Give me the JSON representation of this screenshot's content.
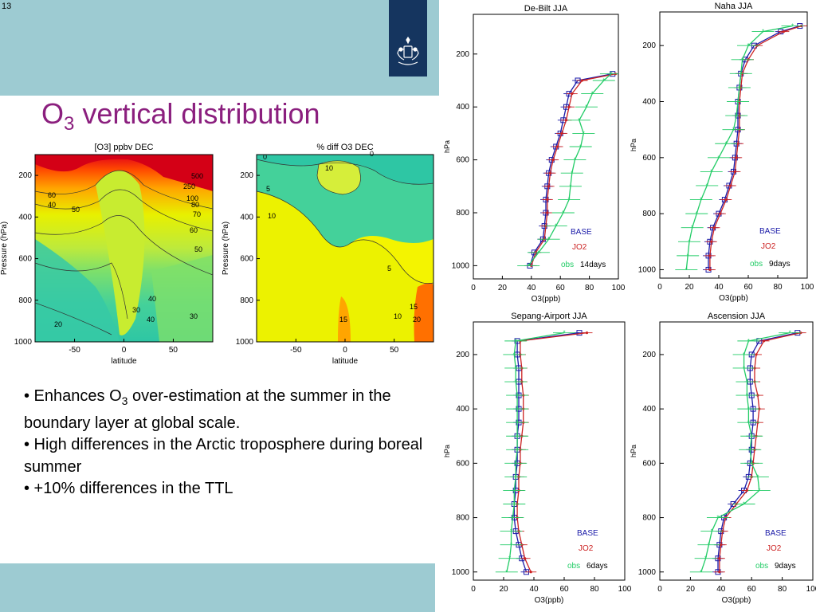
{
  "slide": {
    "number": "13",
    "title_main": "O",
    "title_sub": "3",
    "title_rest": " vertical distribution"
  },
  "bullets": [
    {
      "pre": "• Enhances O",
      "sub": "3",
      "post": " over-estimation at the summer in the boundary layer at global scale."
    },
    {
      "pre": "• High differences in the Arctic troposphere during boreal summer",
      "sub": "",
      "post": ""
    },
    {
      "pre": "• +10% differences in the TTL",
      "sub": "",
      "post": ""
    }
  ],
  "colors": {
    "band": "#9dcbd2",
    "title": "#8b1f7e",
    "logo": "#15355f",
    "base": "#1a1aa8",
    "jo2": "#cc2222",
    "obs": "#22cc66"
  },
  "chart_data": [
    {
      "type": "heatmap",
      "title": "[O3] ppbv DEC",
      "xlabel": "latitude",
      "ylabel": "Pressure (hPa)",
      "xticks": [
        "-50",
        "0",
        "50"
      ],
      "yticks": [
        "200",
        "400",
        "600",
        "800",
        "1000"
      ],
      "xlim": [
        -90,
        90
      ],
      "ylim": [
        1000,
        100
      ],
      "contour_labels": [
        "500",
        "250",
        "100",
        "80",
        "70",
        "60",
        "50",
        "40",
        "30",
        "20",
        "60",
        "40",
        "50",
        "40",
        "30"
      ]
    },
    {
      "type": "heatmap",
      "title": "% diff O3 DEC",
      "xlabel": "latitude",
      "ylabel": "Pressure (hPa)",
      "xticks": [
        "-50",
        "0",
        "50"
      ],
      "yticks": [
        "200",
        "400",
        "600",
        "800",
        "1000"
      ],
      "xlim": [
        -90,
        90
      ],
      "ylim": [
        1000,
        100
      ],
      "contour_labels": [
        "0",
        "10",
        "0",
        "5",
        "10",
        "5",
        "15",
        "10",
        "15",
        "20"
      ]
    },
    {
      "type": "line",
      "title": "De-Bilt JJA",
      "xlabel": "O3(ppb)",
      "ylabel": "hPa",
      "xticks": [
        "0",
        "20",
        "40",
        "60",
        "80",
        "100"
      ],
      "yticks": [
        "200",
        "400",
        "600",
        "800",
        "1000"
      ],
      "xlim": [
        0,
        100
      ],
      "ylim": [
        1050,
        50
      ],
      "legend": [
        "BASE",
        "JO2",
        "obs"
      ],
      "note": "14days",
      "pressure": [
        1000,
        950,
        900,
        850,
        800,
        750,
        700,
        650,
        600,
        550,
        500,
        450,
        400,
        350,
        300,
        275
      ],
      "series": [
        {
          "name": "BASE",
          "values": [
            39,
            42,
            48,
            49,
            50,
            50,
            51,
            52,
            54,
            57,
            60,
            62,
            64,
            66,
            72,
            96
          ]
        },
        {
          "name": "JO2",
          "values": [
            40,
            43,
            49,
            50,
            51,
            51,
            52,
            53,
            55,
            58,
            61,
            64,
            66,
            68,
            75,
            98
          ]
        },
        {
          "name": "obs",
          "values": [
            38,
            45,
            52,
            57,
            62,
            66,
            67,
            68,
            70,
            74,
            76,
            73,
            78,
            82,
            90,
            95
          ]
        }
      ]
    },
    {
      "type": "line",
      "title": "Naha JJA",
      "xlabel": "O3(ppb)",
      "ylabel": "hPa",
      "xticks": [
        "0",
        "20",
        "40",
        "60",
        "80",
        "100"
      ],
      "yticks": [
        "200",
        "400",
        "600",
        "800",
        "1000"
      ],
      "xlim": [
        0,
        100
      ],
      "ylim": [
        1030,
        80
      ],
      "legend": [
        "BASE",
        "JO2",
        "obs"
      ],
      "note": "9days",
      "pressure": [
        1000,
        950,
        900,
        850,
        800,
        750,
        700,
        650,
        600,
        550,
        500,
        450,
        400,
        350,
        300,
        250,
        200,
        150,
        130
      ],
      "series": [
        {
          "name": "BASE",
          "values": [
            33,
            33,
            34,
            36,
            40,
            44,
            47,
            50,
            51,
            52,
            53,
            53,
            53,
            54,
            55,
            58,
            64,
            82,
            95
          ]
        },
        {
          "name": "JO2",
          "values": [
            34,
            34,
            35,
            37,
            41,
            45,
            48,
            51,
            52,
            53,
            54,
            54,
            54,
            55,
            56,
            60,
            66,
            84,
            96
          ]
        },
        {
          "name": "obs",
          "values": [
            18,
            19,
            20,
            22,
            25,
            28,
            32,
            35,
            40,
            45,
            50,
            52,
            53,
            54,
            55,
            56,
            60,
            70,
            90
          ]
        }
      ]
    },
    {
      "type": "line",
      "title": "Sepang-Airport JJA",
      "xlabel": "O3(ppb)",
      "ylabel": "hPa",
      "xticks": [
        "0",
        "20",
        "40",
        "60",
        "80",
        "100"
      ],
      "yticks": [
        "200",
        "400",
        "600",
        "800",
        "1000"
      ],
      "xlim": [
        0,
        100
      ],
      "ylim": [
        1030,
        80
      ],
      "legend": [
        "BASE",
        "JO2",
        "obs"
      ],
      "note": "6days",
      "pressure": [
        1000,
        950,
        900,
        850,
        800,
        750,
        700,
        650,
        600,
        550,
        500,
        450,
        400,
        350,
        300,
        250,
        200,
        150,
        120
      ],
      "series": [
        {
          "name": "BASE",
          "values": [
            35,
            32,
            30,
            28,
            27,
            27,
            28,
            28,
            29,
            29,
            29,
            30,
            30,
            30,
            30,
            30,
            29,
            29,
            70
          ]
        },
        {
          "name": "JO2",
          "values": [
            38,
            34,
            32,
            30,
            29,
            29,
            30,
            30,
            31,
            31,
            32,
            33,
            33,
            33,
            32,
            32,
            31,
            31,
            75
          ]
        },
        {
          "name": "obs",
          "values": [
            22,
            24,
            25,
            25,
            26,
            27,
            27,
            28,
            28,
            29,
            29,
            29,
            29,
            29,
            28,
            28,
            27,
            28,
            60
          ]
        }
      ]
    },
    {
      "type": "line",
      "title": "Ascension JJA",
      "xlabel": "O3(ppb)",
      "ylabel": "hPa",
      "xticks": [
        "0",
        "20",
        "40",
        "60",
        "80",
        "100"
      ],
      "yticks": [
        "200",
        "400",
        "600",
        "800",
        "1000"
      ],
      "xlim": [
        0,
        100
      ],
      "ylim": [
        1030,
        80
      ],
      "legend": [
        "BASE",
        "JO2",
        "obs"
      ],
      "note": "9days",
      "pressure": [
        1000,
        950,
        900,
        850,
        800,
        750,
        700,
        650,
        600,
        550,
        500,
        450,
        400,
        350,
        300,
        250,
        200,
        150,
        120
      ],
      "series": [
        {
          "name": "BASE",
          "values": [
            38,
            38,
            39,
            40,
            42,
            48,
            55,
            58,
            59,
            60,
            60,
            61,
            61,
            60,
            59,
            59,
            60,
            65,
            90
          ]
        },
        {
          "name": "JO2",
          "values": [
            39,
            39,
            40,
            41,
            43,
            50,
            57,
            60,
            61,
            62,
            63,
            64,
            65,
            64,
            62,
            62,
            63,
            68,
            92
          ]
        },
        {
          "name": "obs",
          "values": [
            27,
            30,
            32,
            34,
            38,
            55,
            65,
            64,
            60,
            59,
            60,
            58,
            58,
            57,
            57,
            55,
            55,
            58,
            85
          ]
        }
      ]
    }
  ]
}
